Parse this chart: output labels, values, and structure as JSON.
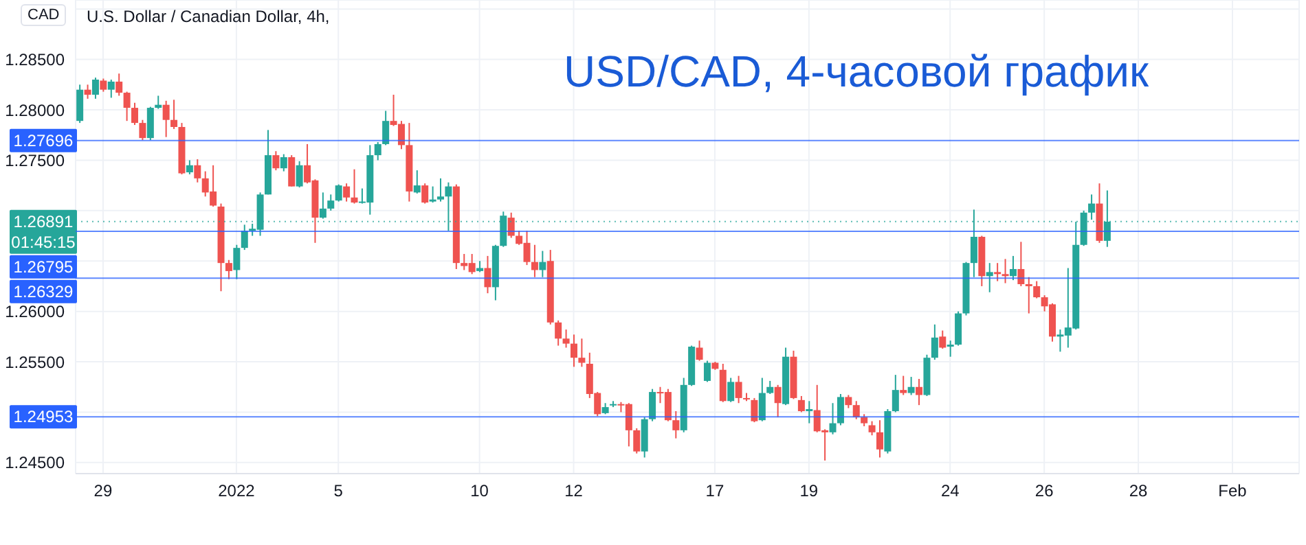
{
  "chart_data": {
    "type": "candlestick",
    "title": "USD/CAD, 4-часовой график",
    "subtitle": "U.S. Dollar / Canadian Dollar, 4h,",
    "ylabel": "CAD",
    "categories": [
      null,
      null,
      null,
      "29",
      null,
      null,
      null,
      null,
      null,
      null,
      null,
      null,
      null,
      null,
      null,
      null,
      null,
      null,
      null,
      null,
      "2022",
      null,
      null,
      null,
      null,
      null,
      null,
      null,
      null,
      null,
      null,
      null,
      null,
      "5",
      null,
      null,
      null,
      null,
      null,
      null,
      null,
      null,
      null,
      null,
      null,
      null,
      null,
      null,
      null,
      null,
      null,
      "10",
      null,
      null,
      null,
      null,
      null,
      null,
      null,
      null,
      null,
      null,
      null,
      "12",
      null,
      null,
      null,
      null,
      null,
      null,
      null,
      null,
      null,
      null,
      null,
      null,
      null,
      null,
      null,
      null,
      null,
      "17",
      null,
      null,
      null,
      null,
      null,
      null,
      null,
      null,
      null,
      null,
      null,
      "19",
      null,
      null,
      null,
      null,
      null,
      null,
      null,
      null,
      null,
      null,
      null,
      null,
      null,
      null,
      null,
      null,
      null,
      "24",
      null,
      null,
      null,
      null,
      null,
      null,
      null,
      null,
      null,
      null,
      null,
      "26",
      null,
      null,
      null,
      null,
      null,
      null,
      null,
      null,
      null,
      null,
      null,
      "28",
      null,
      null,
      null,
      null,
      null,
      null,
      null,
      null,
      null,
      null,
      null,
      "Feb",
      null,
      null,
      null,
      null,
      null,
      null,
      null,
      null
    ],
    "ohlc": [
      [
        1.2789,
        1.2825,
        1.2787,
        1.282
      ],
      [
        1.282,
        1.2825,
        1.2811,
        1.2815
      ],
      [
        1.2815,
        1.2832,
        1.2811,
        1.283
      ],
      [
        1.2829,
        1.2831,
        1.2818,
        1.282
      ],
      [
        1.282,
        1.283,
        1.2812,
        1.2828
      ],
      [
        1.2828,
        1.2836,
        1.2814,
        1.2817
      ],
      [
        1.2817,
        1.2818,
        1.2789,
        1.2802
      ],
      [
        1.2802,
        1.2807,
        1.2785,
        1.2787
      ],
      [
        1.2787,
        1.279,
        1.277,
        1.2772
      ],
      [
        1.2772,
        1.2803,
        1.277,
        1.2802
      ],
      [
        1.2802,
        1.2814,
        1.2801,
        1.2805
      ],
      [
        1.2805,
        1.2809,
        1.2773,
        1.279
      ],
      [
        1.279,
        1.281,
        1.2781,
        1.2783
      ],
      [
        1.2783,
        1.2787,
        1.2736,
        1.2737
      ],
      [
        1.2738,
        1.275,
        1.2736,
        1.2745
      ],
      [
        1.2745,
        1.2751,
        1.2728,
        1.2732
      ],
      [
        1.2732,
        1.2739,
        1.2714,
        1.2718
      ],
      [
        1.2719,
        1.2745,
        1.2704,
        1.2705
      ],
      [
        1.2704,
        1.2707,
        1.262,
        1.2648
      ],
      [
        1.2648,
        1.2651,
        1.2632,
        1.264
      ],
      [
        1.2641,
        1.2666,
        1.2632,
        1.2663
      ],
      [
        1.2663,
        1.2686,
        1.2661,
        1.268
      ],
      [
        1.268,
        1.2687,
        1.2675,
        1.2682
      ],
      [
        1.2681,
        1.2718,
        1.2675,
        1.2716
      ],
      [
        1.2716,
        1.278,
        1.2716,
        1.2755
      ],
      [
        1.2755,
        1.2759,
        1.274,
        1.2742
      ],
      [
        1.2742,
        1.2756,
        1.2739,
        1.2753
      ],
      [
        1.2753,
        1.2755,
        1.2724,
        1.2724
      ],
      [
        1.2724,
        1.2749,
        1.2723,
        1.2745
      ],
      [
        1.2745,
        1.2766,
        1.2727,
        1.2728
      ],
      [
        1.273,
        1.2731,
        1.2668,
        1.2693
      ],
      [
        1.2693,
        1.2718,
        1.2692,
        1.2702
      ],
      [
        1.2702,
        1.2716,
        1.27,
        1.271
      ],
      [
        1.271,
        1.2726,
        1.2709,
        1.2725
      ],
      [
        1.2724,
        1.2727,
        1.2709,
        1.2713
      ],
      [
        1.2713,
        1.2741,
        1.2707,
        1.2708
      ],
      [
        1.2708,
        1.2722,
        1.2707,
        1.2709
      ],
      [
        1.2708,
        1.2765,
        1.2696,
        1.2755
      ],
      [
        1.2755,
        1.2768,
        1.275,
        1.2766
      ],
      [
        1.2766,
        1.2799,
        1.2765,
        1.2789
      ],
      [
        1.2789,
        1.2815,
        1.2784,
        1.2785
      ],
      [
        1.2786,
        1.2789,
        1.2761,
        1.2765
      ],
      [
        1.2765,
        1.2787,
        1.2709,
        1.2719
      ],
      [
        1.2718,
        1.274,
        1.2717,
        1.2725
      ],
      [
        1.2725,
        1.2727,
        1.2707,
        1.2708
      ],
      [
        1.2709,
        1.2724,
        1.2708,
        1.2711
      ],
      [
        1.2711,
        1.2732,
        1.2709,
        1.2714
      ],
      [
        1.2714,
        1.2728,
        1.268,
        1.2724
      ],
      [
        1.2724,
        1.2726,
        1.2642,
        1.2648
      ],
      [
        1.2648,
        1.2657,
        1.2641,
        1.2645
      ],
      [
        1.2648,
        1.2657,
        1.2637,
        1.2639
      ],
      [
        1.264,
        1.265,
        1.2639,
        1.2643
      ],
      [
        1.2643,
        1.2655,
        1.2618,
        1.2624
      ],
      [
        1.2624,
        1.2666,
        1.2611,
        1.2665
      ],
      [
        1.2665,
        1.2699,
        1.2664,
        1.2695
      ],
      [
        1.2693,
        1.2698,
        1.2673,
        1.2675
      ],
      [
        1.2675,
        1.268,
        1.2666,
        1.2667
      ],
      [
        1.2668,
        1.268,
        1.2646,
        1.2649
      ],
      [
        1.2649,
        1.2666,
        1.2634,
        1.2641
      ],
      [
        1.2641,
        1.266,
        1.2634,
        1.2649
      ],
      [
        1.265,
        1.2661,
        1.2587,
        1.2589
      ],
      [
        1.2589,
        1.2591,
        1.2566,
        1.2573
      ],
      [
        1.2573,
        1.2582,
        1.2564,
        1.2568
      ],
      [
        1.2568,
        1.2577,
        1.2545,
        1.2554
      ],
      [
        1.2554,
        1.2573,
        1.2545,
        1.2549
      ],
      [
        1.2548,
        1.2559,
        1.2514,
        1.2518
      ],
      [
        1.2519,
        1.252,
        1.2496,
        1.2498
      ],
      [
        1.2499,
        1.2509,
        1.2498,
        1.2505
      ],
      [
        1.2507,
        1.2511,
        1.2505,
        1.2508
      ],
      [
        1.2508,
        1.251,
        1.25,
        1.2507
      ],
      [
        1.2508,
        1.2509,
        1.2466,
        1.2482
      ],
      [
        1.2482,
        1.2484,
        1.2459,
        1.2461
      ],
      [
        1.2461,
        1.2495,
        1.2455,
        1.2493
      ],
      [
        1.2493,
        1.2523,
        1.2491,
        1.252
      ],
      [
        1.252,
        1.2525,
        1.2509,
        1.2519
      ],
      [
        1.252,
        1.2523,
        1.2491,
        1.2492
      ],
      [
        1.2492,
        1.2501,
        1.2474,
        1.2482
      ],
      [
        1.2482,
        1.2534,
        1.248,
        1.2527
      ],
      [
        1.2527,
        1.2566,
        1.2526,
        1.2565
      ],
      [
        1.2564,
        1.2571,
        1.2551,
        1.2552
      ],
      [
        1.2531,
        1.2551,
        1.253,
        1.2549
      ],
      [
        1.2549,
        1.255,
        1.2542,
        1.2543
      ],
      [
        1.2542,
        1.2548,
        1.251,
        1.2511
      ],
      [
        1.2511,
        1.2534,
        1.251,
        1.253
      ],
      [
        1.253,
        1.2536,
        1.2509,
        1.2514
      ],
      [
        1.2514,
        1.2519,
        1.2511,
        1.2513
      ],
      [
        1.2512,
        1.2514,
        1.249,
        1.2491
      ],
      [
        1.2492,
        1.2534,
        1.2491,
        1.2519
      ],
      [
        1.2519,
        1.2531,
        1.2518,
        1.2525
      ],
      [
        1.2525,
        1.2527,
        1.2495,
        1.2509
      ],
      [
        1.2508,
        1.2564,
        1.2507,
        1.2555
      ],
      [
        1.2555,
        1.2561,
        1.2513,
        1.2514
      ],
      [
        1.2512,
        1.2516,
        1.25,
        1.2501
      ],
      [
        1.2501,
        1.2511,
        1.2489,
        1.2503
      ],
      [
        1.2502,
        1.2527,
        1.248,
        1.2481
      ],
      [
        1.2482,
        1.2483,
        1.2452,
        1.248
      ],
      [
        1.248,
        1.2509,
        1.2478,
        1.2489
      ],
      [
        1.2489,
        1.2518,
        1.2487,
        1.2515
      ],
      [
        1.2515,
        1.2517,
        1.2504,
        1.2507
      ],
      [
        1.2507,
        1.2511,
        1.2493,
        1.2495
      ],
      [
        1.2495,
        1.2498,
        1.2486,
        1.2489
      ],
      [
        1.2487,
        1.2491,
        1.2477,
        1.248
      ],
      [
        1.248,
        1.2492,
        1.2455,
        1.2463
      ],
      [
        1.2461,
        1.2503,
        1.2459,
        1.2501
      ],
      [
        1.2501,
        1.2537,
        1.25,
        1.2522
      ],
      [
        1.2522,
        1.2536,
        1.2517,
        1.2519
      ],
      [
        1.2519,
        1.2535,
        1.2517,
        1.2525
      ],
      [
        1.2525,
        1.2533,
        1.2507,
        1.2517
      ],
      [
        1.2517,
        1.2557,
        1.2516,
        1.2554
      ],
      [
        1.2554,
        1.2587,
        1.2552,
        1.2574
      ],
      [
        1.2575,
        1.2581,
        1.2563,
        1.2564
      ],
      [
        1.2565,
        1.2571,
        1.2555,
        1.2567
      ],
      [
        1.2567,
        1.26,
        1.2566,
        1.2598
      ],
      [
        1.2598,
        1.2649,
        1.2596,
        1.2648
      ],
      [
        1.2648,
        1.2701,
        1.2634,
        1.2674
      ],
      [
        1.2674,
        1.2675,
        1.2625,
        1.2635
      ],
      [
        1.2635,
        1.2648,
        1.2619,
        1.2639
      ],
      [
        1.2639,
        1.2648,
        1.263,
        1.2637
      ],
      [
        1.2637,
        1.2652,
        1.2628,
        1.2635
      ],
      [
        1.2635,
        1.2655,
        1.2631,
        1.2642
      ],
      [
        1.2642,
        1.2669,
        1.2625,
        1.2627
      ],
      [
        1.2627,
        1.2634,
        1.2598,
        1.2625
      ],
      [
        1.2625,
        1.263,
        1.2613,
        1.2614
      ],
      [
        1.2614,
        1.2616,
        1.26,
        1.2605
      ],
      [
        1.2607,
        1.2608,
        1.257,
        1.2575
      ],
      [
        1.2575,
        1.2582,
        1.256,
        1.2577
      ],
      [
        1.2576,
        1.2643,
        1.2564,
        1.2584
      ],
      [
        1.2583,
        1.2689,
        1.2582,
        1.2666
      ],
      [
        1.2666,
        1.27,
        1.2665,
        1.2698
      ],
      [
        1.2698,
        1.2716,
        1.2691,
        1.2707
      ],
      [
        1.2707,
        1.2727,
        1.2668,
        1.267
      ],
      [
        1.267,
        1.272,
        1.2664,
        1.2689
      ],
      null,
      null,
      null,
      null,
      null,
      null,
      null,
      null,
      null,
      null,
      null,
      null,
      null,
      null,
      null,
      null,
      null,
      null,
      null,
      null,
      null,
      null,
      null,
      null
    ],
    "colors": [
      "#26a69a",
      "#ef5350",
      "#26a69a",
      "#ef5350",
      "#26a69a",
      "#ef5350",
      "#ef5350",
      "#ef5350",
      "#ef5350",
      "#26a69a",
      "#26a69a",
      "#ef5350",
      "#ef5350",
      "#ef5350",
      "#26a69a",
      "#ef5350",
      "#ef5350",
      "#ef5350",
      "#ef5350",
      "#ef5350",
      "#26a69a",
      "#26a69a",
      "#26a69a",
      "#26a69a",
      "#26a69a",
      "#ef5350",
      "#26a69a",
      "#ef5350",
      "#26a69a",
      "#ef5350",
      "#ef5350",
      "#26a69a",
      "#26a69a",
      "#26a69a",
      "#ef5350",
      "#ef5350",
      "#26a69a",
      "#26a69a",
      "#26a69a",
      "#26a69a",
      "#ef5350",
      "#ef5350",
      "#ef5350",
      "#26a69a",
      "#ef5350",
      "#26a69a",
      "#26a69a",
      "#26a69a",
      "#ef5350",
      "#ef5350",
      "#ef5350",
      "#26a69a",
      "#ef5350",
      "#26a69a",
      "#26a69a",
      "#ef5350",
      "#ef5350",
      "#ef5350",
      "#ef5350",
      "#26a69a",
      "#ef5350",
      "#ef5350",
      "#ef5350",
      "#ef5350",
      "#ef5350",
      "#ef5350",
      "#ef5350",
      "#26a69a",
      "#26a69a",
      "#ef5350",
      "#ef5350",
      "#ef5350",
      "#26a69a",
      "#26a69a",
      "#ef5350",
      "#ef5350",
      "#ef5350",
      "#26a69a",
      "#26a69a",
      "#ef5350",
      "#26a69a",
      "#ef5350",
      "#ef5350",
      "#26a69a",
      "#ef5350",
      "#ef5350",
      "#ef5350",
      "#26a69a",
      "#26a69a",
      "#ef5350",
      "#26a69a",
      "#ef5350",
      "#ef5350",
      "#26a69a",
      "#ef5350",
      "#ef5350",
      "#26a69a",
      "#26a69a",
      "#ef5350",
      "#ef5350",
      "#ef5350",
      "#ef5350",
      "#ef5350",
      "#26a69a",
      "#26a69a",
      "#ef5350",
      "#26a69a",
      "#ef5350",
      "#26a69a",
      "#26a69a",
      "#ef5350",
      "#26a69a",
      "#26a69a",
      "#26a69a",
      "#26a69a",
      "#ef5350",
      "#26a69a",
      "#ef5350",
      "#ef5350",
      "#26a69a",
      "#ef5350",
      "#ef5350",
      "#ef5350",
      "#ef5350",
      "#ef5350",
      "#26a69a",
      "#26a69a",
      "#26a69a",
      "#26a69a",
      "#26a69a",
      "#ef5350",
      "#26a69a",
      null,
      null,
      null,
      null,
      null,
      null,
      null,
      null,
      null,
      null,
      null,
      null,
      null,
      null,
      null,
      null,
      null,
      null,
      null,
      null,
      null,
      null,
      null,
      null
    ],
    "ylim": [
      1.2439,
      1.2909
    ],
    "yticks": [
      {
        "value": 1.285,
        "label": "1.28500"
      },
      {
        "value": 1.28,
        "label": "1.28000"
      },
      {
        "value": 1.275,
        "label": "1.27500"
      },
      {
        "value": 1.27,
        "label": null
      },
      {
        "value": 1.265,
        "label": null
      },
      {
        "value": 1.26,
        "label": "1.26000"
      },
      {
        "value": 1.255,
        "label": "1.25500"
      },
      {
        "value": 1.25,
        "label": null
      },
      {
        "value": 1.245,
        "label": "1.24500"
      },
      {
        "value": 1.29,
        "label": null
      }
    ],
    "grid": true,
    "ref_lines": [
      {
        "axis": "y",
        "value": 1.27696,
        "label": "1.27696",
        "color": "#2962ff"
      },
      {
        "axis": "y",
        "value": 1.26891,
        "label": "1.26891\n01:45:15",
        "color": "#26a69a",
        "line_style": "dotted"
      },
      {
        "axis": "y",
        "value": 1.26795,
        "label": "1.26795",
        "color": "#2962ff"
      },
      {
        "axis": "y",
        "value": 1.26329,
        "label": "1.26329",
        "color": "#2962ff"
      },
      {
        "axis": "y",
        "value": 1.24953,
        "label": "1.24953",
        "color": "#2962ff"
      }
    ]
  }
}
